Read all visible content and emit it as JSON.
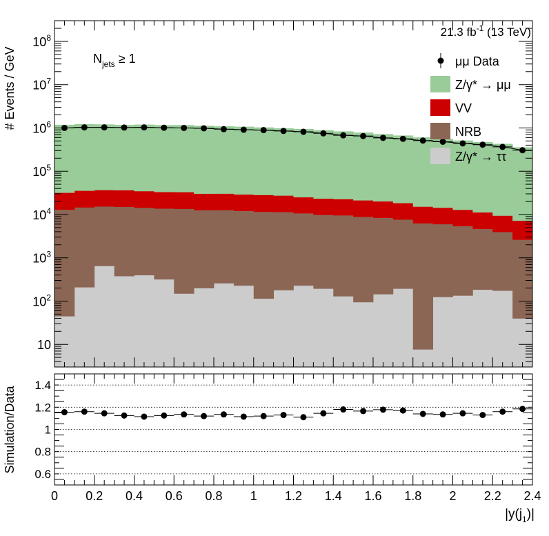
{
  "header": {
    "lumi_label": "21.3 fb",
    "lumi_exp": "-1",
    "energy_label": " (13 TeV)"
  },
  "selection": {
    "main": "N",
    "sub": "jets",
    "rest": " ≥ 1"
  },
  "chart_data": [
    {
      "type": "bar",
      "stacked": true,
      "ylabel": "# Events / GeV",
      "yscale": "log",
      "ylim": [
        3,
        300000000
      ],
      "y_ticks": [
        {
          "v": 10,
          "label": "10"
        },
        {
          "v": 100,
          "base": "10",
          "exp": "2"
        },
        {
          "v": 1000,
          "base": "10",
          "exp": "3"
        },
        {
          "v": 10000,
          "base": "10",
          "exp": "4"
        },
        {
          "v": 100000,
          "base": "10",
          "exp": "5"
        },
        {
          "v": 1000000,
          "base": "10",
          "exp": "6"
        },
        {
          "v": 10000000,
          "base": "10",
          "exp": "7"
        },
        {
          "v": 100000000,
          "base": "10",
          "exp": "8"
        }
      ],
      "x_bins": [
        0.0,
        0.1,
        0.2,
        0.3,
        0.4,
        0.5,
        0.6,
        0.7,
        0.8,
        0.9,
        1.0,
        1.1,
        1.2,
        1.3,
        1.4,
        1.5,
        1.6,
        1.7,
        1.8,
        1.9,
        2.0,
        2.1,
        2.2,
        2.3,
        2.4
      ],
      "legend": [
        {
          "label": "μμ Data",
          "kind": "marker",
          "color": "#000000"
        },
        {
          "label": "Z/γ* → μμ",
          "kind": "box",
          "color": "#99cc99"
        },
        {
          "label": "VV",
          "kind": "box",
          "color": "#cc0000"
        },
        {
          "label": "NRB",
          "kind": "box",
          "color": "#8b6655"
        },
        {
          "label": "Z/γ* → ττ",
          "kind": "box",
          "color": "#cccccc"
        }
      ],
      "series": [
        {
          "key": "ztautau",
          "color": "#cccccc",
          "values": [
            45,
            210,
            650,
            380,
            400,
            320,
            150,
            200,
            260,
            230,
            115,
            180,
            230,
            195,
            130,
            95,
            145,
            195,
            7.7,
            125,
            135,
            185,
            175,
            40
          ]
        },
        {
          "key": "nrb",
          "color": "#8b6655",
          "values": [
            13000,
            14500,
            14800,
            14800,
            14000,
            13500,
            13500,
            12500,
            12500,
            12000,
            11500,
            11300,
            10500,
            9700,
            9500,
            8800,
            8300,
            7500,
            6300,
            5900,
            5300,
            4500,
            3800,
            2600
          ]
        },
        {
          "key": "vv",
          "color": "#cc0000",
          "values": [
            19000,
            21000,
            21500,
            21500,
            20500,
            19500,
            19500,
            17800,
            17800,
            17000,
            16800,
            16100,
            14500,
            13500,
            13200,
            12500,
            11800,
            10800,
            9000,
            8400,
            7500,
            6600,
            5500,
            4600
          ]
        },
        {
          "key": "zmumu",
          "color": "#99cc99",
          "values": [
            1150000,
            1190000,
            1170000,
            1140000,
            1160000,
            1130000,
            1130000,
            1090000,
            1060000,
            1040000,
            1000000,
            950000,
            920000,
            860000,
            810000,
            760000,
            700000,
            650000,
            590000,
            540000,
            500000,
            460000,
            420000,
            350000
          ]
        }
      ],
      "data": {
        "values": [
          1000000,
          1030000,
          1030000,
          1020000,
          1030000,
          1010000,
          1000000,
          980000,
          935000,
          910000,
          890000,
          850000,
          815000,
          750000,
          675000,
          650000,
          590000,
          560000,
          510000,
          480000,
          440000,
          410000,
          365000,
          305000
        ],
        "color": "#000000"
      }
    },
    {
      "type": "scatter",
      "xlabel": "|y(j",
      "xlabel_sub": "1",
      "xlabel_end": ")|",
      "ylabel": "Simulation/Data",
      "ylim": [
        0.5,
        1.5
      ],
      "xlim": [
        0,
        2.4
      ],
      "y_ticks": [
        "0.6",
        "0.8",
        "1",
        "1.2",
        "1.4"
      ],
      "x_ticks": [
        "0",
        "0.2",
        "0.4",
        "0.6",
        "0.8",
        "1",
        "1.2",
        "1.4",
        "1.6",
        "1.8",
        "2",
        "2.2",
        "2.4"
      ],
      "grid": true,
      "values": [
        1.155,
        1.16,
        1.145,
        1.125,
        1.115,
        1.125,
        1.135,
        1.12,
        1.135,
        1.115,
        1.12,
        1.13,
        1.11,
        1.145,
        1.18,
        1.165,
        1.178,
        1.17,
        1.14,
        1.135,
        1.145,
        1.13,
        1.16,
        1.185
      ]
    }
  ]
}
